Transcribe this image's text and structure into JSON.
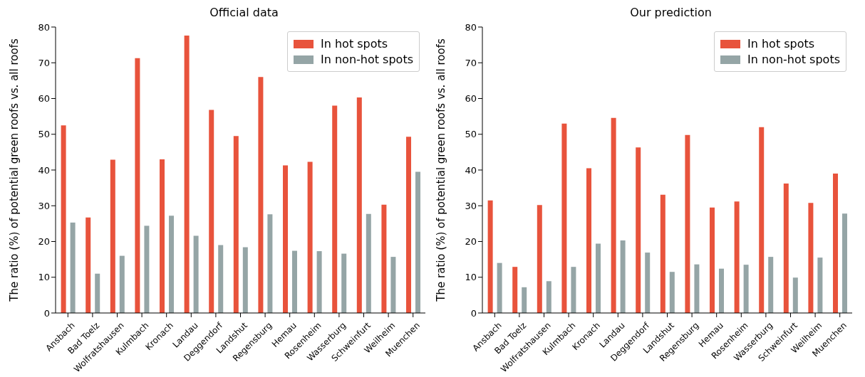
{
  "chart_data": [
    {
      "type": "bar",
      "title": "Official data",
      "ylabel": "The ratio (%) of potential green roofs vs. all roofs",
      "categories": [
        "Ansbach",
        "Bad Toelz",
        "Wolfratshausen",
        "Kulmbach",
        "Kronach",
        "Landau",
        "Deggendorf",
        "Landshut",
        "Regensburg",
        "Hemau",
        "Rosenheim",
        "Wasserburg",
        "Schweinfurt",
        "Weilheim",
        "Muenchen"
      ],
      "series": [
        {
          "name": "In hot spots",
          "color": "#e8533c",
          "values": [
            52.5,
            26.7,
            42.9,
            71.3,
            43,
            77.6,
            56.8,
            49.5,
            66,
            41.3,
            42.3,
            58,
            60.3,
            30.3,
            49.3
          ]
        },
        {
          "name": "In non-hot spots",
          "color": "#95a5a6",
          "values": [
            25.3,
            11,
            16,
            24.4,
            27.2,
            21.6,
            19,
            18.4,
            27.6,
            17.4,
            17.3,
            16.6,
            27.7,
            15.7,
            39.5
          ]
        }
      ],
      "ylim": [
        0,
        80
      ],
      "yticks": [
        0,
        10,
        20,
        30,
        40,
        50,
        60,
        70,
        80
      ],
      "grid": false,
      "legend": "top right"
    },
    {
      "type": "bar",
      "title": "Our prediction",
      "ylabel": "The ratio (%) of potential green roofs vs. all roofs",
      "categories": [
        "Ansbach",
        "Bad Toelz",
        "Wolfratshausen",
        "Kulmbach",
        "Kronach",
        "Landau",
        "Deggendorf",
        "Landshut",
        "Regensburg",
        "Hemau",
        "Rosenheim",
        "Wasserburg",
        "Schweinfurt",
        "Weilheim",
        "Muenchen"
      ],
      "series": [
        {
          "name": "In hot spots",
          "color": "#e8533c",
          "values": [
            31.5,
            12.9,
            30.2,
            53,
            40.5,
            54.6,
            46.3,
            33.1,
            49.8,
            29.5,
            31.2,
            52,
            36.2,
            30.8,
            39
          ]
        },
        {
          "name": "In non-hot spots",
          "color": "#95a5a6",
          "values": [
            14,
            7.2,
            8.9,
            12.9,
            19.4,
            20.3,
            16.9,
            11.5,
            13.6,
            12.4,
            13.5,
            15.7,
            9.9,
            15.5,
            27.8
          ]
        }
      ],
      "ylim": [
        0,
        80
      ],
      "yticks": [
        0,
        10,
        20,
        30,
        40,
        50,
        60,
        70,
        80
      ],
      "grid": false,
      "legend": "top right"
    }
  ]
}
